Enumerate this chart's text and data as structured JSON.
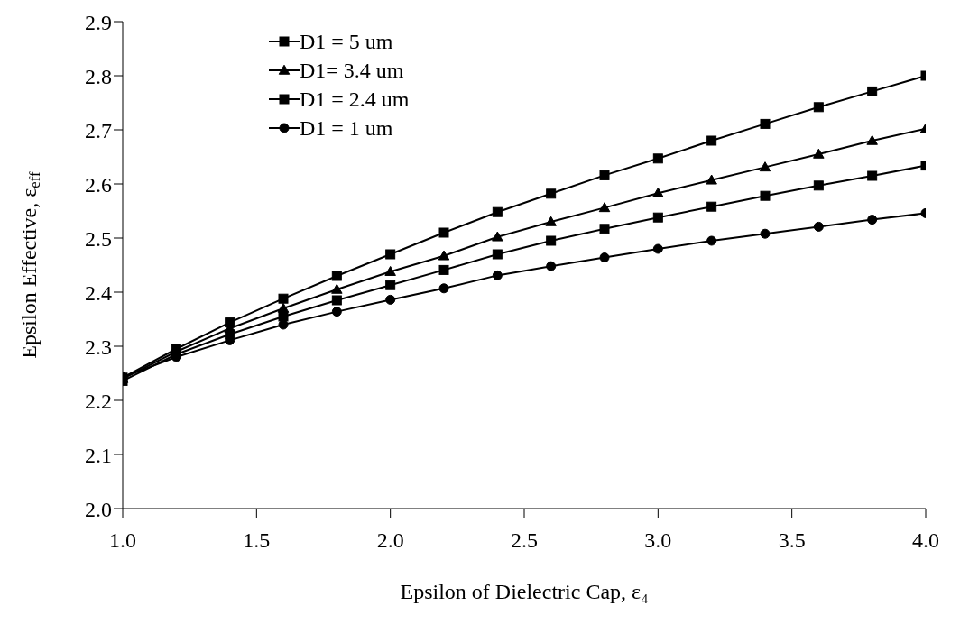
{
  "chart_data": {
    "type": "line",
    "xlabel": "Epsilon of Dielectric Cap, ε₄",
    "ylabel": "Epsilon Effective, ε$_{eff}$",
    "x": [
      1.0,
      1.2,
      1.4,
      1.6,
      1.8,
      2.0,
      2.2,
      2.4,
      2.6,
      2.8,
      3.0,
      3.2,
      3.4,
      3.6,
      3.8,
      4.0
    ],
    "series": [
      {
        "name": "D1 = 5 um",
        "color": "#000000",
        "marker": "square",
        "values": [
          2.242,
          2.295,
          2.344,
          2.388,
          2.43,
          2.47,
          2.51,
          2.548,
          2.582,
          2.616,
          2.647,
          2.68,
          2.711,
          2.742,
          2.771,
          2.8
        ]
      },
      {
        "name": "D1= 3.4 um",
        "color": "#000000",
        "marker": "triangle",
        "values": [
          2.24,
          2.29,
          2.333,
          2.37,
          2.405,
          2.438,
          2.467,
          2.502,
          2.53,
          2.556,
          2.583,
          2.607,
          2.631,
          2.655,
          2.68,
          2.702
        ]
      },
      {
        "name": "D1 = 2.4 um",
        "color": "#000000",
        "marker": "square",
        "values": [
          2.236,
          2.285,
          2.322,
          2.355,
          2.385,
          2.413,
          2.441,
          2.47,
          2.495,
          2.517,
          2.538,
          2.558,
          2.578,
          2.597,
          2.615,
          2.634
        ]
      },
      {
        "name": "D1 = 1 um",
        "color": "#000000",
        "marker": "circle",
        "values": [
          2.243,
          2.28,
          2.311,
          2.34,
          2.364,
          2.386,
          2.407,
          2.431,
          2.448,
          2.464,
          2.48,
          2.495,
          2.508,
          2.521,
          2.534,
          2.546
        ]
      }
    ],
    "xlim": [
      1.0,
      4.0
    ],
    "xticks": [
      {
        "value": 1,
        "label": "1.0"
      },
      {
        "value": 1.5,
        "label": "1.5"
      },
      {
        "value": 2,
        "label": "2.0"
      },
      {
        "value": 2.5,
        "label": "2.5"
      },
      {
        "value": 3,
        "label": "3.0"
      },
      {
        "value": 3.5,
        "label": "3.5"
      },
      {
        "value": 4,
        "label": "4.0"
      }
    ],
    "ylim": [
      2.0,
      2.9
    ],
    "yticks": [
      {
        "value": 2,
        "label": "2.0"
      },
      {
        "value": 2.1,
        "label": "2.1"
      },
      {
        "value": 2.2,
        "label": "2.2"
      },
      {
        "value": 2.3,
        "label": "2.3"
      },
      {
        "value": 2.4,
        "label": "2.4"
      },
      {
        "value": 2.5,
        "label": "2.5"
      },
      {
        "value": 2.6,
        "label": "2.6"
      },
      {
        "value": 2.7,
        "label": "2.7"
      },
      {
        "value": 2.8,
        "label": "2.8"
      },
      {
        "value": 2.9,
        "label": "2.9"
      }
    ],
    "grid": false,
    "legend": "top left",
    "line_style": "solid"
  }
}
